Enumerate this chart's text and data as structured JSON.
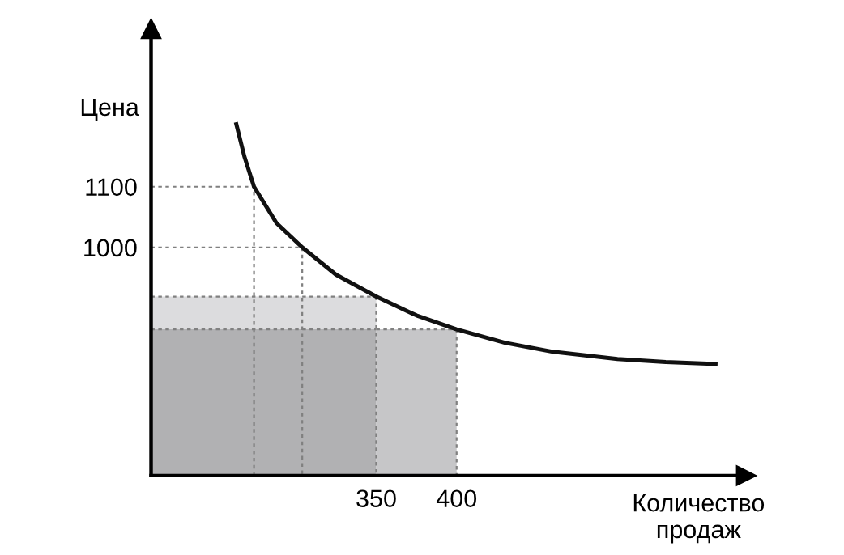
{
  "chart_data": {
    "type": "line",
    "ylabel": "Цена",
    "xlabel": "Количество\nпродаж",
    "xlim": [
      210,
      580
    ],
    "ylim": [
      624,
      1360
    ],
    "xticks": [
      350,
      400
    ],
    "yticks": [
      1000,
      1100
    ],
    "grid": false,
    "series": [
      {
        "type": "area",
        "color": "#dcdcde",
        "line_style": "dotted",
        "x": [
          210,
          350
        ],
        "values": [
          919,
          919
        ]
      },
      {
        "type": "area",
        "color": "#b1b1b3",
        "line_style": "dotted",
        "x": [
          210,
          350
        ],
        "values": [
          865,
          865
        ]
      },
      {
        "type": "area",
        "color": "#c6c6c8",
        "line_style": "dotted",
        "x": [
          350,
          400
        ],
        "values": [
          865,
          865
        ]
      },
      {
        "type": "line",
        "color": "#808080",
        "line_style": "dotted",
        "x": [
          210,
          274,
          274
        ],
        "values": [
          1100,
          1100,
          624
        ]
      },
      {
        "type": "line",
        "color": "#808080",
        "line_style": "dotted",
        "x": [
          210,
          304,
          304
        ],
        "values": [
          1000,
          1000,
          624
        ]
      },
      {
        "type": "line",
        "color": "#808080",
        "line_style": "dotted",
        "x": [
          350,
          350
        ],
        "values": [
          919,
          624
        ]
      },
      {
        "type": "line",
        "color": "#808080",
        "line_style": "dotted",
        "x": [
          400,
          400
        ],
        "values": [
          865,
          624
        ]
      },
      {
        "color": "#111111",
        "line_style": "solid",
        "x": [
          263,
          268,
          274,
          288,
          304,
          325,
          350,
          375,
          400,
          430,
          460,
          500,
          530,
          561
        ],
        "values": [
          1203,
          1150,
          1100,
          1040,
          1000,
          955,
          919,
          888,
          865,
          843,
          828,
          816,
          811,
          808
        ]
      }
    ]
  }
}
